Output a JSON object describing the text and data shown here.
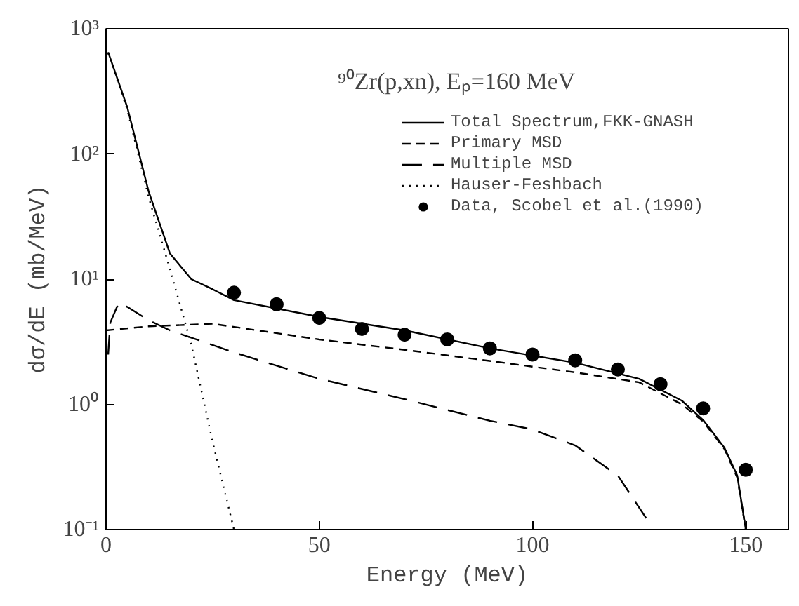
{
  "chart_data": {
    "type": "line",
    "title": "⁹⁰Zr(p,xn), Eₚ=160 MeV",
    "xlabel": "Energy (MeV)",
    "ylabel": "dσ/dE (mb/MeV)",
    "log": "y",
    "xlim": [
      0,
      160
    ],
    "xticks": [
      0,
      50,
      100,
      150
    ],
    "ylim": [
      0.1,
      1000
    ],
    "yticks": [
      {
        "value": 0.1,
        "label": "10⁻¹"
      },
      {
        "value": 1,
        "label": "10⁰"
      },
      {
        "value": 10,
        "label": "10¹"
      },
      {
        "value": 100,
        "label": "10²"
      },
      {
        "value": 1000,
        "label": "10³"
      }
    ],
    "grid": false,
    "legend": "top right",
    "series": [
      {
        "name": "Total Spectrum,FKK-GNASH",
        "line_style": "solid",
        "color": "#000000",
        "x": [
          0.5,
          5,
          10,
          15,
          20,
          25,
          30,
          50,
          70,
          90,
          110,
          125,
          135,
          140,
          145,
          148,
          150
        ],
        "values": [
          650,
          235,
          50,
          16,
          10,
          8.3,
          6.8,
          5.0,
          3.9,
          2.8,
          2.15,
          1.6,
          1.07,
          0.75,
          0.45,
          0.27,
          0.1
        ]
      },
      {
        "name": "Primary MSD",
        "line_style": "dashed",
        "color": "#000000",
        "x": [
          0,
          10,
          25,
          50,
          71,
          91,
          110,
          125,
          135,
          140,
          145,
          148,
          150
        ],
        "values": [
          3.9,
          4.2,
          4.4,
          3.3,
          2.7,
          2.2,
          1.8,
          1.5,
          1.0,
          0.73,
          0.44,
          0.26,
          0.1
        ]
      },
      {
        "name": "Multiple MSD",
        "line_style": "long_dashed",
        "color": "#000000",
        "x": [
          0.5,
          1,
          3,
          5,
          10,
          15,
          30,
          50,
          70,
          90,
          100,
          110,
          120,
          128
        ],
        "values": [
          2.5,
          4.5,
          6.5,
          6.0,
          4.7,
          3.9,
          2.6,
          1.6,
          1.1,
          0.74,
          0.63,
          0.47,
          0.27,
          0.105
        ]
      },
      {
        "name": "Hauser-Feshbach",
        "line_style": "dotted",
        "color": "#000000",
        "x": [
          0.5,
          5,
          10,
          15,
          20,
          25,
          30
        ],
        "values": [
          640,
          225,
          45,
          12,
          3,
          0.5,
          0.1
        ]
      },
      {
        "name": "Data, Scobel et al.(1990)",
        "type": "scatter",
        "marker": "circle",
        "color": "#000000",
        "x": [
          30,
          40,
          50,
          60,
          70,
          80,
          90,
          100,
          110,
          120,
          130,
          140,
          150
        ],
        "values": [
          7.8,
          6.3,
          4.9,
          4.0,
          3.6,
          3.3,
          2.8,
          2.5,
          2.25,
          1.9,
          1.45,
          0.93,
          0.3
        ]
      }
    ]
  }
}
